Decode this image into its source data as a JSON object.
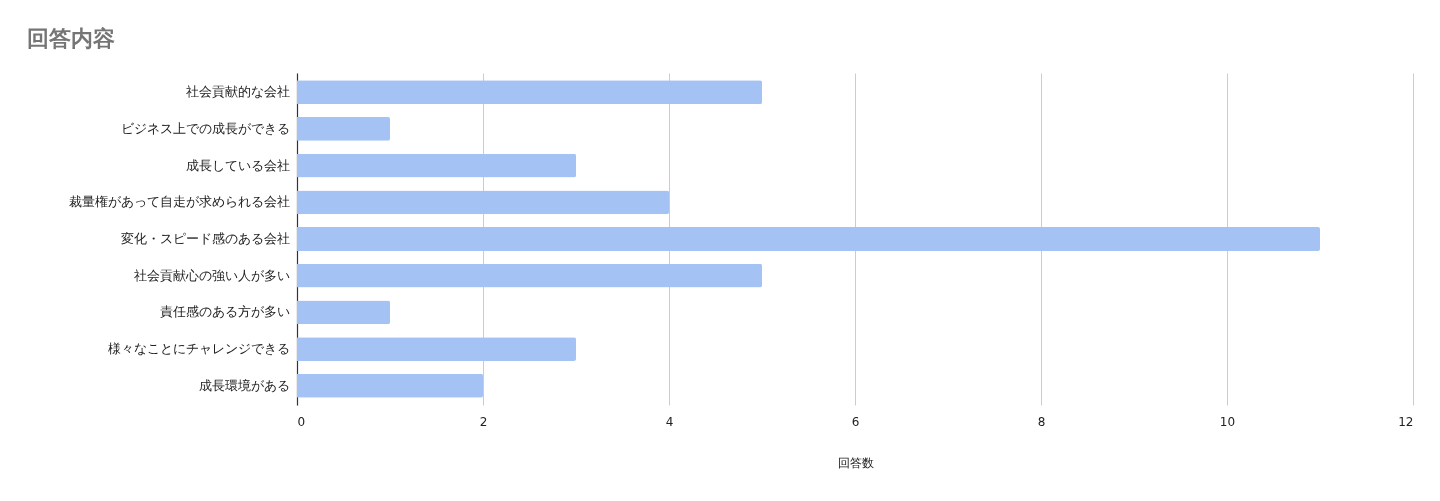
{
  "chart_data": {
    "type": "bar",
    "orientation": "horizontal",
    "title": "回答内容",
    "xlabel": "回答数",
    "categories": [
      "社会貢献的な会社",
      "ビジネス上での成長ができる",
      "成長している会社",
      "裁量権があって自走が求められる会社",
      "変化・スピード感のある会社",
      "社会貢献心の強い人が多い",
      "責任感のある方が多い",
      "様々なことにチャレンジできる",
      "成長環境がある"
    ],
    "values": [
      5,
      1,
      3,
      4,
      11,
      5,
      1,
      3,
      2
    ],
    "color": "#a4c2f4",
    "xlim": [
      0,
      12
    ],
    "xticks": [
      0,
      2,
      4,
      6,
      8,
      10,
      12
    ],
    "grid": "x"
  }
}
